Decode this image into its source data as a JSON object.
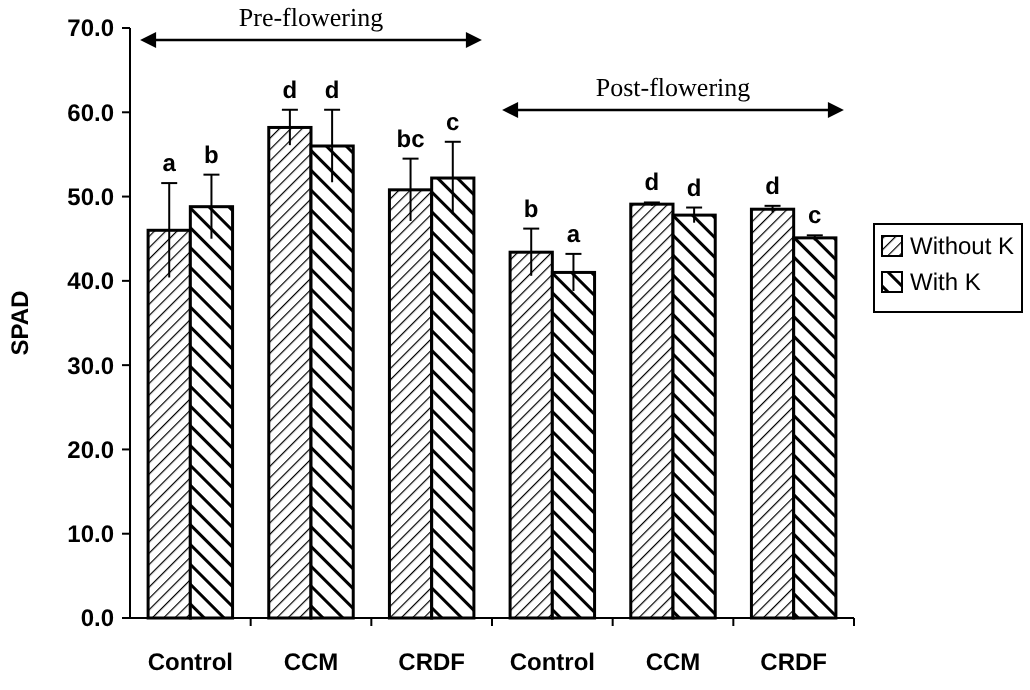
{
  "chart_data": {
    "type": "bar",
    "ylabel": "SPAD",
    "categories": [
      "Control",
      "CCM",
      "CRDF",
      "Control",
      "CCM",
      "CRDF"
    ],
    "series": [
      {
        "name": "Without K",
        "color": "#000000",
        "values": [
          46.0,
          58.2,
          50.8,
          43.4,
          49.1,
          48.5
        ],
        "errors": [
          5.6,
          2.1,
          3.7,
          2.8,
          0.2,
          0.4
        ],
        "value_labels": [
          "a",
          "d",
          "bc",
          "b",
          "d",
          "d"
        ]
      },
      {
        "name": "With K",
        "color": "#000000",
        "values": [
          48.8,
          56.0,
          52.2,
          41.0,
          47.8,
          45.1
        ],
        "errors": [
          3.8,
          4.3,
          4.3,
          2.2,
          0.9,
          0.3
        ],
        "value_labels": [
          "b",
          "d",
          "c",
          "a",
          "d",
          "c"
        ]
      }
    ],
    "ylim": [
      0,
      70
    ],
    "yticks": [
      {
        "value": 0,
        "label": "0.0"
      },
      {
        "value": 10,
        "label": "10.0"
      },
      {
        "value": 20,
        "label": "20.0"
      },
      {
        "value": 30,
        "label": "30.0"
      },
      {
        "value": 40,
        "label": "40.0"
      },
      {
        "value": 50,
        "label": "50.0"
      },
      {
        "value": 60,
        "label": "60.0"
      },
      {
        "value": 70,
        "label": "70.0"
      }
    ],
    "annotations": [
      "Pre-flowering",
      "Post-flowering"
    ],
    "grid": false,
    "legend": "right"
  }
}
